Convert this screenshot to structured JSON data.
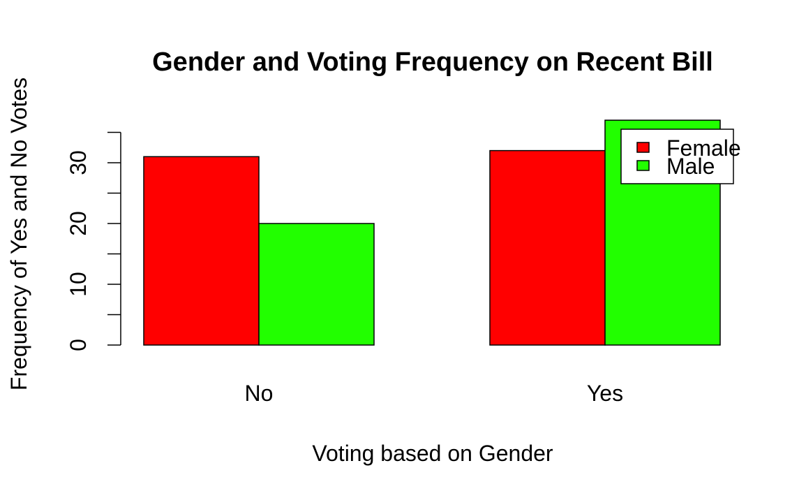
{
  "chart_data": {
    "type": "bar",
    "title": "Gender and Voting Frequency on Recent Bill",
    "xlabel": "Voting based on Gender",
    "ylabel": "Frequency of Yes and No Votes",
    "categories": [
      "No",
      "Yes"
    ],
    "series": [
      {
        "name": "Female",
        "values": [
          31,
          32
        ],
        "color": "#ff0000"
      },
      {
        "name": "Male",
        "values": [
          20,
          37
        ],
        "color": "#22ff00"
      }
    ],
    "ylim": [
      0,
      35
    ],
    "yticks": [
      0,
      10,
      20,
      30
    ],
    "grid": false,
    "legend_position": "top-right"
  }
}
